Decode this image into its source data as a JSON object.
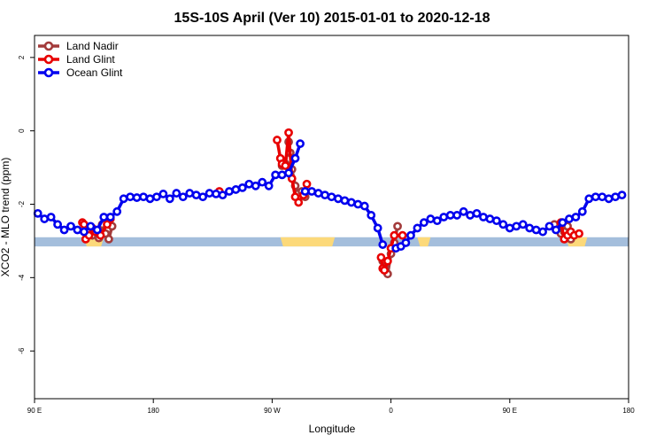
{
  "chart_data": {
    "type": "line",
    "title": "15S-10S April (Ver 10)   2015-01-01 to 2020-12-18",
    "xlabel": "Longitude",
    "ylabel": "XCO2 - MLO trend (ppm)",
    "xlim": [
      90,
      450
    ],
    "ylim": [
      -7.3,
      2.6
    ],
    "x_ticks": [
      {
        "value": 90,
        "label": "90 E"
      },
      {
        "value": 162,
        "label": "180"
      },
      {
        "value": 234,
        "label": "90 W"
      },
      {
        "value": 306,
        "label": "0"
      },
      {
        "value": 378,
        "label": "90 E"
      },
      {
        "value": 450,
        "label": "180"
      }
    ],
    "y_ticks": [
      {
        "value": 2,
        "label": "2"
      },
      {
        "value": 0,
        "label": "0"
      },
      {
        "value": -2,
        "label": "-2"
      },
      {
        "value": -4,
        "label": "-4"
      },
      {
        "value": -6,
        "label": "-6"
      }
    ],
    "legend_position": "top-left",
    "land_band": {
      "y_range": [
        -3.15,
        -2.9
      ],
      "ocean_color": "#a4bedc",
      "land_color": "#fcd97a",
      "land_segments": [
        [
          120,
          132
        ],
        [
          239,
          272
        ],
        [
          322,
          330
        ],
        [
          412,
          425
        ]
      ]
    },
    "series": [
      {
        "name": "Land Nadir",
        "color": "#a33b3b",
        "segments": [
          [
            [
              125,
              -2.85
            ],
            [
              129,
              -2.92
            ],
            [
              131,
              -2.55
            ],
            [
              133,
              -2.8
            ],
            [
              135,
              -2.95
            ],
            [
              137,
              -2.6
            ]
          ],
          [
            [
              240,
              -0.95
            ],
            [
              242,
              -0.9
            ],
            [
              244,
              -0.3
            ],
            [
              245,
              -0.6
            ],
            [
              246,
              -1.05
            ],
            [
              248,
              -1.5
            ],
            [
              250,
              -1.7
            ],
            [
              252,
              -1.65
            ],
            [
              254,
              -1.8
            ]
          ],
          [
            [
              301,
              -3.55
            ],
            [
              302,
              -3.7
            ],
            [
              304,
              -3.9
            ],
            [
              306,
              -3.35
            ],
            [
              308,
              -3.05
            ],
            [
              310,
              -2.6
            ]
          ],
          [
            [
              405,
              -2.55
            ],
            [
              407,
              -2.7
            ],
            [
              409,
              -2.8
            ],
            [
              411,
              -2.75
            ],
            [
              413,
              -2.6
            ],
            [
              415,
              -2.95
            ]
          ]
        ]
      },
      {
        "name": "Land Glint",
        "color": "#e80000",
        "segments": [
          [
            [
              119,
              -2.5
            ],
            [
              120,
              -2.55
            ],
            [
              121,
              -2.95
            ],
            [
              123,
              -2.85
            ],
            [
              125,
              -2.65
            ],
            [
              127,
              -2.75
            ],
            [
              130,
              -2.85
            ],
            [
              134,
              -2.55
            ],
            [
              136,
              -2.4
            ]
          ],
          [
            [
              202,
              -1.65
            ]
          ],
          [
            [
              237,
              -0.25
            ],
            [
              239,
              -0.75
            ],
            [
              240,
              -0.9
            ],
            [
              242,
              -0.95
            ],
            [
              244,
              -0.05
            ],
            [
              246,
              -1.3
            ],
            [
              248,
              -1.8
            ],
            [
              250,
              -1.95
            ],
            [
              253,
              -1.75
            ],
            [
              255,
              -1.45
            ]
          ],
          [
            [
              300,
              -3.45
            ],
            [
              301,
              -3.75
            ],
            [
              302,
              -3.8
            ],
            [
              304,
              -3.55
            ],
            [
              306,
              -3.2
            ],
            [
              308,
              -2.85
            ],
            [
              313,
              -2.85
            ]
          ],
          [
            [
              409,
              -2.5
            ],
            [
              411,
              -2.95
            ],
            [
              413,
              -2.85
            ],
            [
              415,
              -2.75
            ],
            [
              417,
              -2.85
            ],
            [
              420,
              -2.8
            ]
          ]
        ]
      },
      {
        "name": "Ocean Glint",
        "color": "#0000ee",
        "segments": [
          [
            [
              92,
              -2.25
            ],
            [
              96,
              -2.4
            ],
            [
              100,
              -2.35
            ],
            [
              104,
              -2.55
            ],
            [
              108,
              -2.7
            ],
            [
              112,
              -2.6
            ],
            [
              116,
              -2.7
            ],
            [
              120,
              -2.75
            ],
            [
              124,
              -2.6
            ],
            [
              128,
              -2.7
            ],
            [
              132,
              -2.35
            ],
            [
              136,
              -2.35
            ],
            [
              140,
              -2.2
            ],
            [
              144,
              -1.85
            ],
            [
              148,
              -1.8
            ],
            [
              152,
              -1.82
            ],
            [
              156,
              -1.8
            ],
            [
              160,
              -1.85
            ],
            [
              164,
              -1.8
            ],
            [
              168,
              -1.72
            ],
            [
              172,
              -1.85
            ],
            [
              176,
              -1.7
            ],
            [
              180,
              -1.8
            ],
            [
              184,
              -1.7
            ],
            [
              188,
              -1.75
            ],
            [
              192,
              -1.8
            ],
            [
              196,
              -1.7
            ],
            [
              200,
              -1.72
            ],
            [
              204,
              -1.75
            ],
            [
              208,
              -1.65
            ],
            [
              212,
              -1.6
            ],
            [
              216,
              -1.55
            ],
            [
              220,
              -1.45
            ],
            [
              224,
              -1.5
            ],
            [
              228,
              -1.4
            ],
            [
              232,
              -1.5
            ],
            [
              236,
              -1.2
            ],
            [
              240,
              -1.2
            ],
            [
              244,
              -1.15
            ],
            [
              248,
              -0.75
            ],
            [
              251,
              -0.35
            ]
          ],
          [
            [
              254,
              -1.65
            ],
            [
              258,
              -1.65
            ],
            [
              262,
              -1.7
            ],
            [
              266,
              -1.75
            ],
            [
              270,
              -1.8
            ],
            [
              274,
              -1.85
            ],
            [
              278,
              -1.9
            ],
            [
              282,
              -1.95
            ],
            [
              286,
              -2.0
            ],
            [
              290,
              -2.05
            ],
            [
              294,
              -2.3
            ],
            [
              298,
              -2.65
            ],
            [
              301,
              -3.1
            ]
          ],
          [
            [
              309,
              -3.2
            ],
            [
              312,
              -3.15
            ],
            [
              315,
              -3.05
            ],
            [
              318,
              -2.85
            ],
            [
              322,
              -2.65
            ],
            [
              326,
              -2.5
            ],
            [
              330,
              -2.4
            ],
            [
              334,
              -2.45
            ],
            [
              338,
              -2.35
            ],
            [
              342,
              -2.3
            ],
            [
              346,
              -2.3
            ],
            [
              350,
              -2.2
            ],
            [
              354,
              -2.3
            ],
            [
              358,
              -2.25
            ],
            [
              362,
              -2.35
            ],
            [
              366,
              -2.4
            ],
            [
              370,
              -2.45
            ],
            [
              374,
              -2.55
            ],
            [
              378,
              -2.65
            ],
            [
              382,
              -2.6
            ],
            [
              386,
              -2.55
            ],
            [
              390,
              -2.65
            ],
            [
              394,
              -2.7
            ],
            [
              398,
              -2.75
            ],
            [
              402,
              -2.6
            ],
            [
              406,
              -2.7
            ],
            [
              410,
              -2.5
            ],
            [
              414,
              -2.4
            ],
            [
              418,
              -2.35
            ],
            [
              422,
              -2.2
            ],
            [
              426,
              -1.85
            ],
            [
              430,
              -1.8
            ],
            [
              434,
              -1.8
            ],
            [
              438,
              -1.85
            ],
            [
              442,
              -1.8
            ],
            [
              446,
              -1.75
            ]
          ]
        ]
      }
    ]
  }
}
